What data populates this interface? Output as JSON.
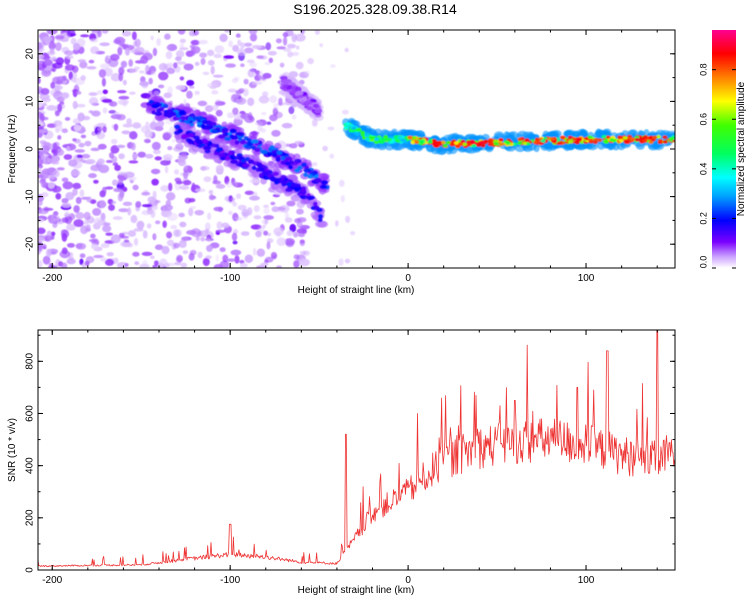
{
  "figure_title": "S196.2025.328.09.38.R14",
  "chart_data": [
    {
      "type": "heatmap",
      "title": "S196.2025.328.09.38.R14",
      "xlabel": "Height of straight line (km)",
      "ylabel": "Frequency (Hz)",
      "xlim": [
        -208,
        150
      ],
      "ylim": [
        -25,
        25
      ],
      "xticks": [
        -200,
        -100,
        0,
        100
      ],
      "yticks": [
        -20,
        -10,
        0,
        10,
        20
      ],
      "xtick_labels": [
        "-200",
        "-100",
        "0",
        "100"
      ],
      "ytick_labels": [
        "-20",
        "-10",
        "0",
        "10",
        "20"
      ],
      "colorbar": {
        "label": "Normalized spectral amplitude",
        "range": [
          0,
          0.96
        ],
        "ticks": [
          0.0,
          0.2,
          0.4,
          0.6,
          0.8
        ],
        "tick_labels": [
          "0.0",
          "0.2",
          "0.4",
          "0.6",
          "0.8"
        ],
        "colormap": [
          "#ffffff",
          "#8800ff",
          "#0000ff",
          "#00ddff",
          "#00ff00",
          "#ffff00",
          "#ff0000",
          "#ff00aa"
        ]
      },
      "features": [
        {
          "name": "upper descending track",
          "x": [
            -145,
            -120,
            -100,
            -80,
            -60,
            -45
          ],
          "y": [
            9,
            6,
            3,
            0,
            -4,
            -8
          ],
          "amplitude": 0.25
        },
        {
          "name": "lower descending track",
          "x": [
            -130,
            -110,
            -90,
            -70,
            -55,
            -48
          ],
          "y": [
            4,
            0,
            -3,
            -7,
            -10,
            -15
          ],
          "amplitude": 0.2
        },
        {
          "name": "rising branch",
          "x": [
            -70,
            -60,
            -50
          ],
          "y": [
            14,
            11,
            8
          ],
          "amplitude": 0.1
        },
        {
          "name": "steady tone",
          "x": [
            -35,
            -20,
            0,
            20,
            60,
            100,
            150
          ],
          "y": [
            5,
            2,
            2,
            1,
            1.5,
            2,
            2
          ],
          "amplitude": 0.8
        }
      ]
    },
    {
      "type": "line",
      "title": "",
      "xlabel": "Height of straight line (km)",
      "ylabel": "SNR (10 * v/v)",
      "xlim": [
        -208,
        150
      ],
      "ylim": [
        0,
        920
      ],
      "xticks": [
        -200,
        -100,
        0,
        100
      ],
      "yticks": [
        0,
        200,
        400,
        600,
        800
      ],
      "xtick_labels": [
        "-200",
        "-100",
        "0",
        "100"
      ],
      "ytick_labels": [
        "0",
        "200",
        "400",
        "600",
        "800"
      ],
      "series": [
        {
          "name": "SNR",
          "color": "#ee3333",
          "envelope": {
            "x": [
              -208,
              -150,
              -120,
              -100,
              -80,
              -60,
              -40,
              -30,
              -20,
              0,
              20,
              40,
              60,
              80,
              100,
              120,
              140,
              150
            ],
            "baseline": [
              15,
              20,
              45,
              60,
              50,
              30,
              25,
              120,
              220,
              300,
              420,
              470,
              490,
              500,
              480,
              440,
              420,
              460
            ]
          },
          "peaks": [
            {
              "x": -100,
              "y": 175
            },
            {
              "x": -35,
              "y": 520
            },
            {
              "x": 60,
              "y": 650
            },
            {
              "x": 95,
              "y": 700
            },
            {
              "x": 112,
              "y": 840
            },
            {
              "x": 140,
              "y": 920
            }
          ]
        }
      ]
    }
  ]
}
